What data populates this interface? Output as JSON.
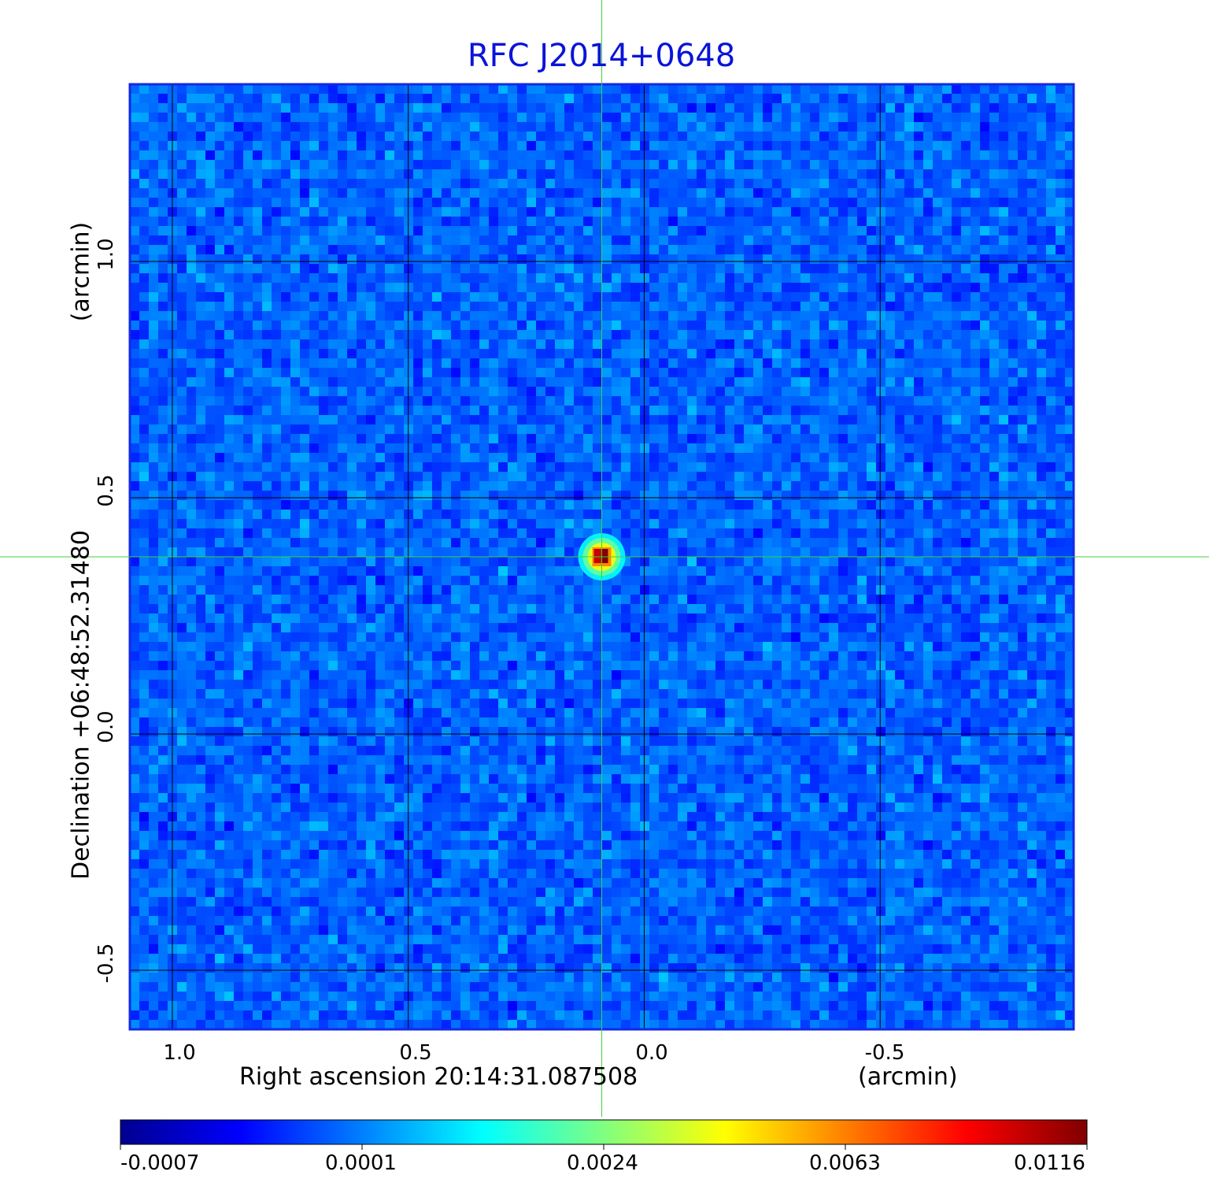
{
  "chart_data": {
    "type": "heatmap",
    "title": "RFC J2014+0648",
    "xlabel": "Right ascension  20:14:31.087508",
    "xunit": "(arcmin)",
    "ylabel": "Declination  +06:48:52.31480",
    "yunit": "(arcmin)",
    "xlim": [
      1.09,
      -0.91
    ],
    "ylim": [
      -0.625,
      1.375
    ],
    "x_ticks": [
      1.0,
      0.5,
      0.0,
      -0.5
    ],
    "x_tick_labels": [
      "1.0",
      "0.5",
      "0.0",
      "-0.5"
    ],
    "y_ticks": [
      1.0,
      0.5,
      0.0,
      -0.5
    ],
    "y_tick_labels": [
      "1.0",
      "0.5",
      "0.0",
      "-0.5"
    ],
    "grid": true,
    "crosshair": {
      "x": 0.09,
      "y": 0.375
    },
    "source": {
      "x": 0.09,
      "y": 0.375,
      "peak": 0.0116
    },
    "colorbar": {
      "colormap": "jet",
      "tick_labels": [
        "-0.0007",
        "0.0001",
        "0.0024",
        "0.0063",
        "0.0116"
      ],
      "range": [
        -0.0007,
        0.0116
      ]
    }
  },
  "colors": {
    "title": "#0a14d8",
    "frame": "#1428e6",
    "grid": "#000000",
    "crosshair": "#3cd23c"
  }
}
